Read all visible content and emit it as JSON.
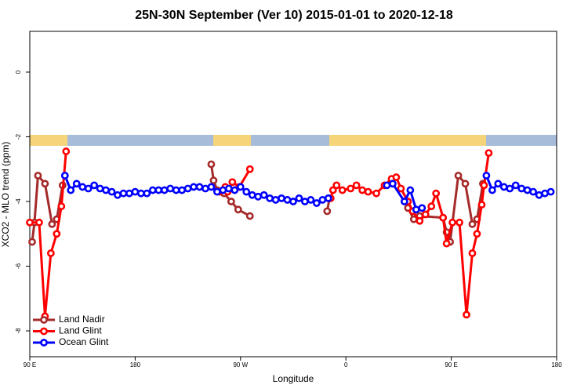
{
  "chart_data": {
    "type": "line",
    "title": "25N-30N September (Ver 10)   2015-01-01 to 2020-12-18",
    "xlabel": "Longitude",
    "ylabel": "XCO2 - MLO trend (ppm)",
    "xlim": [
      90,
      540
    ],
    "ylim": [
      -8.8,
      1.26
    ],
    "xticks": [
      {
        "value": 90,
        "label": "90 E"
      },
      180,
      {
        "value": 270,
        "label": "90 W"
      },
      {
        "value": 360,
        "label": "0"
      },
      {
        "value": 450,
        "label": "90 E"
      },
      {
        "value": 540,
        "label": "180"
      }
    ],
    "yticks": [
      0,
      -2,
      -4,
      -6,
      -8
    ],
    "legend": "bottom-left",
    "series": [
      {
        "name": "Land Nadir",
        "color": "#a52a2a",
        "x": [
          92,
          94,
          97,
          103,
          109,
          113,
          118,
          200,
          245,
          247,
          250,
          256,
          262,
          268,
          278,
          300,
          344,
          346,
          380,
          413,
          418,
          423,
          443,
          446,
          449,
          456,
          462,
          468,
          472,
          477
        ],
        "values": [
          -5.25,
          -4.65,
          -3.2,
          -3.45,
          -4.7,
          -4.55,
          -3.5,
          null,
          -2.85,
          -3.35,
          -3.65,
          -3.75,
          -4.0,
          -4.25,
          -4.45,
          null,
          -4.3,
          -3.9,
          null,
          -4.2,
          -4.55,
          -4.45,
          -4.5,
          -4.95,
          -5.25,
          -3.2,
          -3.45,
          -4.7,
          -4.55,
          -3.45
        ]
      },
      {
        "name": "Land Glint",
        "color": "#ff0000",
        "x": [
          90,
          98,
          103,
          108,
          113,
          117,
          121,
          200,
          252,
          257,
          259,
          263,
          269,
          278,
          300,
          347,
          349,
          352,
          357,
          364,
          369,
          374,
          379,
          386,
          393,
          399,
          403,
          407,
          413,
          417,
          423,
          428,
          433,
          437,
          443,
          446,
          451,
          457,
          463,
          468,
          472,
          476,
          478,
          482
        ],
        "values": [
          -4.65,
          -4.65,
          -7.55,
          -5.6,
          -5.0,
          -4.15,
          -2.45,
          null,
          -3.7,
          -3.55,
          -3.7,
          -3.4,
          -3.55,
          -3.0,
          null,
          -3.9,
          -3.65,
          -3.5,
          -3.65,
          -3.6,
          -3.5,
          -3.65,
          -3.7,
          -3.75,
          -3.5,
          -3.3,
          -3.25,
          -3.6,
          -4.0,
          -4.3,
          -4.6,
          -4.4,
          -4.15,
          -3.75,
          -4.5,
          -5.3,
          -4.65,
          -4.65,
          -7.5,
          -5.6,
          -5.0,
          -4.1,
          -3.5,
          -2.5
        ]
      },
      {
        "name": "Ocean Glint",
        "color": "#0000ff",
        "x": [
          120,
          125,
          130,
          135,
          140,
          145,
          150,
          155,
          160,
          165,
          170,
          175,
          180,
          185,
          190,
          195,
          200,
          205,
          210,
          215,
          220,
          225,
          230,
          235,
          240,
          245,
          250,
          255,
          260,
          265,
          270,
          275,
          280,
          285,
          290,
          295,
          300,
          305,
          310,
          315,
          320,
          325,
          330,
          335,
          340,
          345,
          350,
          395,
          400,
          410,
          415,
          420,
          425,
          450,
          480,
          485,
          490,
          495,
          500,
          505,
          510,
          515,
          520,
          525,
          530,
          535
        ],
        "values": [
          -3.2,
          -3.65,
          -3.45,
          -3.55,
          -3.6,
          -3.5,
          -3.6,
          -3.65,
          -3.7,
          -3.8,
          -3.75,
          -3.75,
          -3.7,
          -3.75,
          -3.75,
          -3.65,
          -3.65,
          -3.65,
          -3.6,
          -3.65,
          -3.65,
          -3.6,
          -3.55,
          -3.55,
          -3.6,
          -3.55,
          -3.7,
          -3.65,
          -3.6,
          -3.65,
          -3.55,
          -3.7,
          -3.8,
          -3.85,
          -3.8,
          -3.9,
          -3.95,
          -3.9,
          -3.95,
          -4.0,
          -3.9,
          -4.0,
          -3.95,
          -4.05,
          -3.95,
          -3.9,
          null,
          -3.5,
          -3.45,
          -4.0,
          -3.65,
          -4.25,
          -4.2,
          null,
          -3.2,
          -3.65,
          -3.45,
          -3.55,
          -3.6,
          -3.5,
          -3.6,
          -3.65,
          -3.7,
          -3.8,
          -3.75,
          -3.7
        ]
      }
    ]
  }
}
